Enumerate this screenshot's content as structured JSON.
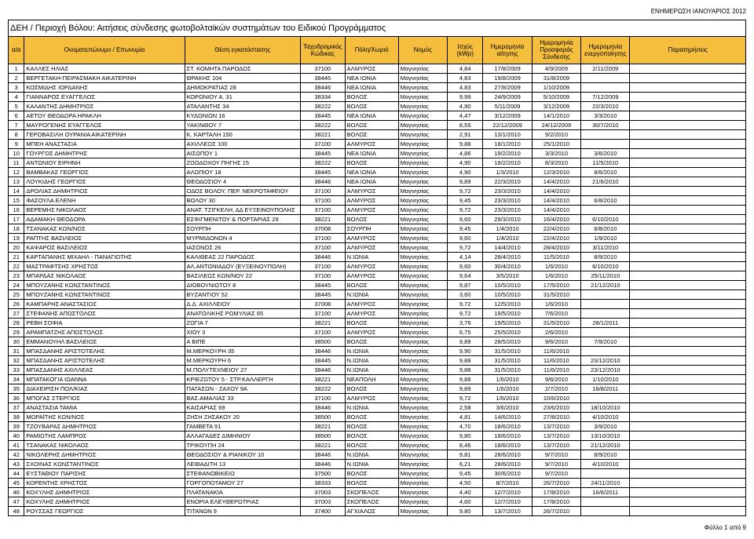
{
  "headerRight": "ΕΝΗΜΕΡΩΣΗ ΙΑΝΟΥΑΡΙΟΣ 2012",
  "title": "ΔΕΗ / Περιοχή Βόλου:  Αιτήσεις σύνδεσης φωτοβολταϊκών συστημάτων του Ειδικού Προγράμματος",
  "footer": "Φύλλο 1 από 9",
  "columns": [
    {
      "key": "aa",
      "label": "α/α",
      "cls": "c-aa"
    },
    {
      "key": "name",
      "label": "Ονοματεπώνυμο / Επωνυμία",
      "cls": "c-name"
    },
    {
      "key": "loc",
      "label": "Θέση εγκατάστασης",
      "cls": "c-loc"
    },
    {
      "key": "zip",
      "label": "Ταχυδρομικός Κώδικας",
      "cls": "c-zip"
    },
    {
      "key": "city",
      "label": "Πόλη/Χωριό",
      "cls": "c-city"
    },
    {
      "key": "nom",
      "label": "Νομός",
      "cls": "c-nom"
    },
    {
      "key": "pow",
      "label": "Ισχύς (kWp)",
      "cls": "c-pow"
    },
    {
      "key": "d1",
      "label": "Ημερομηνία αίτησης",
      "cls": "c-d1"
    },
    {
      "key": "d2",
      "label": "Ημερομηνία Προσφοράς Σύνδεσης",
      "cls": "c-d2"
    },
    {
      "key": "d3",
      "label": "Ημερομηνία ενεργοποίησης",
      "cls": "c-d3"
    },
    {
      "key": "note",
      "label": "Παρατηρήσεις",
      "cls": "c-note"
    }
  ],
  "rows": [
    [
      "1",
      "ΚΑΛΛΕΣ ΗΛΙΑΣ",
      "ΣΤ. ΚΟΜΗΤΑ ΠΑΡΟΔΟΣ",
      "37100",
      "ΑΛΜΥΡΟΣ",
      "Μαγνησίας",
      "4,84",
      "17/8/2009",
      "4/9/2009",
      "2/11/2009",
      ""
    ],
    [
      "2",
      "ΒΕΡΓΕΤΑΚΗ-ΠΕΙΡΑΣΜΑΚΗ ΑΙΚΑΤΕΡΙΝΗ",
      "ΘΡΑΚΗΣ 104",
      "38445",
      "ΝΕΑ ΙΩΝΙΑ",
      "Μαγνησίας",
      "4,83",
      "19/8/2009",
      "31/8/2009",
      "",
      ""
    ],
    [
      "3",
      "ΚΟΣΜΙΔΗΣ ΙΟΡΔΑΝΗΣ",
      "ΔΗΜΟΚΡΑΤΙΑΣ 28",
      "38446",
      "ΝΕΑ ΙΩΝΙΑ",
      "Μαγνησίας",
      "4,83",
      "27/8/2009",
      "1/10/2009",
      "",
      ""
    ],
    [
      "4",
      "ΓΙΑΝΝΑΡΟΣ ΕΥΑΓΓΕΛΟΣ",
      "ΚΟΡΩΝΙΟΥ Α. 31",
      "38334",
      "ΒΟΛΟΣ",
      "Μαγνησίας",
      "9,99",
      "24/9/2009",
      "5/10/2009",
      "7/12/2009",
      ""
    ],
    [
      "5",
      "ΚΑΛΑΝΤΗΣ ΔΗΜΗΤΡΙΟΣ",
      "ΑΤΑΛΑΝΤΗΣ 34",
      "38222",
      "ΒΟΛΟΣ",
      "Μαγνησίας",
      "4,90",
      "5/11/2009",
      "3/12/2009",
      "22/3/2010",
      ""
    ],
    [
      "6",
      "ΑΕΤΟΥ ΘΕΟΔΩΡΑ ΗΡΑΚΛΗ",
      "ΚΥΔΩΝΙΩΝ 16",
      "38445",
      "ΝΕΑ ΙΩΝΙΑ",
      "Μαγνησίας",
      "4,47",
      "3/12/2009",
      "14/1/2010",
      "3/3/2010",
      ""
    ],
    [
      "7",
      "ΜΑΥΡΟΓΕΝΗΣ ΕΥΑΓΓΕΛΟΣ",
      "ΥΑΚΙΝΘΟΥ 7",
      "38222",
      "ΒΟΛΟΣ",
      "Μαγνησίας",
      "8,55",
      "22/12/2009",
      "24/12/2009",
      "30/7/2010",
      ""
    ],
    [
      "8",
      "ΓΕΡΟΒΑΣΙΛΗ ΟΥΡΑΝΙΑ ΑΙΚΑΤΕΡΙΝΗ",
      "Κ. ΚΑΡΤΑΛΗ 150",
      "38221",
      "ΒΟΛΟΣ",
      "Μαγνησίας",
      "2,91",
      "13/1/2010",
      "9/2/2010",
      "",
      ""
    ],
    [
      "9",
      "ΜΠΕΗ ΑΝΑΣΤΑΣΙΑ",
      "ΑΧΙΛΛΕΩΣ 100",
      "37100",
      "ΑΛΜΥΡΟΣ",
      "Μαγνησίας",
      "9,88",
      "18/1/2010",
      "25/1/2010",
      "",
      ""
    ],
    [
      "10",
      "ΓΟΥΡΓΟΣ ΔΗΜΗΤΡΗΣ",
      "ΑΙΣΩΠΟΥ 1",
      "38445",
      "ΝΕΑ ΙΩΝΙΑ",
      "Μαγνησίας",
      "4,86",
      "19/2/2010",
      "3/3/2010",
      "3/6/2010",
      ""
    ],
    [
      "11",
      "ΑΝΤΩΝΙΟΥ ΕΙΡΗΝΗ",
      "ΖΩΟΔΟΧΟΥ ΠΗΓΗΣ 15",
      "38222",
      "ΒΟΛΟΣ",
      "Μαγνησίας",
      "4,90",
      "19/2/2010",
      "8/3/2010",
      "11/5/2010",
      ""
    ],
    [
      "12",
      "ΒΑΜΒΑΚΑΣ ΓΕΩΡΓΙΟΣ",
      "ΑΛΩΠΙΟΥ 18",
      "38445",
      "ΝΕΑ ΙΩΝΙΑ",
      "Μαγνησίας",
      "4,90",
      "1/3/2010",
      "12/3/2010",
      "8/6/2010",
      ""
    ],
    [
      "13",
      "ΛΟΥΚΙΔΗΣ ΓΕΩΡΓΙΟΣ",
      "ΘΕΟΔΟΣΙΟΥ 4",
      "38446",
      "ΝΕΑ ΙΩΝΙΑ",
      "Μαγνησίας",
      "9,89",
      "22/3/2010",
      "14/4/2010",
      "21/6/2010",
      ""
    ],
    [
      "14",
      "ΔΡΟΛΙΑΣ ΔΗΜΗΤΡΙΟΣ",
      "ΟΔΟΣ ΒΟΛΟΥ, ΠΕΡ. ΝΕΚΡΟΤΑΦΕΙΟΥ",
      "37100",
      "ΑΛΜΥΡΟΣ",
      "Μαγνησίας",
      "9,72",
      "23/3/2010",
      "14/4/2010",
      "",
      ""
    ],
    [
      "15",
      "ΦΑΣΟΥΛΑ ΕΛΕΝΗ",
      "ΒΟΛΟΥ 30",
      "37100",
      "ΑΛΜΥΡΟΣ",
      "Μαγνησίας",
      "9,45",
      "23/3/2010",
      "14/4/2010",
      "6/8/2010",
      ""
    ],
    [
      "16",
      "ΒΕΡΕΜΗΣ ΝΙΚΟΛΑΟΣ",
      "ΑΝΑΤ. ΤΖΙΓΚΕΛΗ, ΔΔ ΕΥΞΕΙΝΟΥΠΟΛΗΣ",
      "37100",
      "ΑΛΜΥΡΟΣ",
      "Μαγνησίας",
      "9,72",
      "23/3/2010",
      "14/4/2010",
      "",
      ""
    ],
    [
      "17",
      "ΑΔΑΜΑΚΗ ΘΕΟΔΩΡΑ",
      "ΕΣΦΙΓΜΕΝΙΤΟΥ & ΠΟΡΤΑΡΙΑΣ 29",
      "38221",
      "ΒΟΛΟΣ",
      "Μαγνησίας",
      "9,60",
      "29/3/2010",
      "16/4/2010",
      "6/10/2010",
      ""
    ],
    [
      "18",
      "ΤΣΑΝΑΚΑΣ ΚΩΝ/ΝΟΣ",
      "ΣΟΥΡΠΗ",
      "37008",
      "ΣΟΥΡΠΗ",
      "Μαγνησίας",
      "9,45",
      "1/4/2010",
      "22/4/2010",
      "6/8/2010",
      ""
    ],
    [
      "19",
      "ΡΑΠΤΗΣ ΒΑΣΙΛΕΙΟΣ",
      "ΜΥΡΜΙΔΟΝΩΝ 4",
      "37100",
      "ΑΛΜΥΡΟΣ",
      "Μαγνησίας",
      "9,60",
      "1/4/2010",
      "22/4/2010",
      "1/9/2010",
      ""
    ],
    [
      "20",
      "ΚΑΨΑΡΟΣ ΒΑΣΙΛΕΙΟΣ",
      "ΙΑΣΟΝΟΣ 26",
      "37100",
      "ΑΛΜΥΡΟΣ",
      "Μαγνησίας",
      "9,72",
      "14/4/2010",
      "28/4/2010",
      "3/11/2010",
      ""
    ],
    [
      "21",
      "ΚΑΡΤΑΠΑΝΗΣ ΜΙΧΑΗΛ - ΠΑΝΑΓΙΩΤΗΣ",
      "ΚΑΛΙΘΕΑΣ 22 ΠΑΡΟΔΟΣ",
      "38446",
      "Ν.ΙΩΝΙΑ",
      "Μαγνησίας",
      "4,14",
      "28/4/2010",
      "11/5/2010",
      "8/9/2010",
      ""
    ],
    [
      "22",
      "ΜΑΣΤΡΑΦΤΣΗΣ ΧΡΗΣΤΟΣ",
      "ΑΛ.ΑΝΤΩΝΙΑΔΟΥ (ΕΥΞΕΙΝΟΥΠΟΛΗ)",
      "37100",
      "ΑΛΜΥΡΟΣ",
      "Μαγνησίας",
      "9,60",
      "30/4/2010",
      "1/6/2010",
      "6/10/2010",
      ""
    ],
    [
      "23",
      "ΜΠΑΡΔΑΣ ΝΙΚΟΛΑΟΣ",
      "ΒΑΣΙΛΕΩΣ ΚΩΝ/ΝΟΥ 22",
      "37100",
      "ΑΛΜΥΡΟΣ",
      "Μαγνησίας",
      "9,64",
      "3/5/2010",
      "1/6/2010",
      "25/11/2010",
      ""
    ],
    [
      "24",
      "ΜΠΟΥΖΑΝΗΣ ΚΩΝΣΤΑΝΤΙΝΟΣ",
      "ΔΙΟΒΟΥΝΙΩΤΟΥ 8",
      "38445",
      "ΒΟΛΟΣ",
      "Μαγνησίας",
      "9,87",
      "10/5/2010",
      "17/5/2010",
      "21/12/2010",
      ""
    ],
    [
      "25",
      "ΜΠΟΥΖΑΝΗΣ ΚΩΝΣΤΑΝΤΙΝΟΣ",
      "ΒΥΖΑΝΤΙΟΥ 52",
      "38445",
      "Ν.ΙΩΝΙΑ",
      "Μαγνησίας",
      "3,60",
      "10/5/2010",
      "31/5/2010",
      "",
      ""
    ],
    [
      "26",
      "ΚΑΜΠΑΡΗΣ ΑΝΑΣΤΑΣΙΟΣ",
      "Δ.Δ. ΑΧΙΛΛΕΙΟΥ",
      "37008",
      "ΑΛΜΥΡΟΣ",
      "Μαγνησίας",
      "9,72",
      "12/5/2010",
      "1/6/2010",
      "",
      ""
    ],
    [
      "27",
      "ΣΤΕΦΑΝΗΣ ΑΠΟΣΤΟΛΟΣ",
      "ΑΝΑΤΟΛΙΚΗΣ ΡΩΜΥΛΙΑΣ 65",
      "37100",
      "ΑΛΜΥΡΟΣ",
      "Μαγνησίας",
      "9,72",
      "19/5/2010",
      "7/6/2010",
      "",
      ""
    ],
    [
      "28",
      "ΡΕΒΗ ΣΟΦΙΑ",
      "ΖΩΓΙΑ 7",
      "38221",
      "ΒΟΛΟΣ",
      "Μαγνησίας",
      "3,76",
      "19/5/2010",
      "31/5/2010",
      "28/1/2011",
      ""
    ],
    [
      "29",
      "ΑΡΑΜΠΑΤΖΗΣ ΑΠΟΣΤΟΛΟΣ",
      "ΧΙΟΥ 3",
      "37100",
      "ΑΛΜΥΡΟΣ",
      "Μαγνησίας",
      "6,75",
      "25/5/2010",
      "2/6/2010",
      "",
      ""
    ],
    [
      "30",
      "ΕΜΜΑΝΟΥΗΛ ΒΑΣΙΛΕΙΟΣ",
      "Α ΒΙΠΕ",
      "38500",
      "ΒΟΛΟΣ",
      "Μαγνησίας",
      "9,89",
      "28/5/2010",
      "9/6/2010",
      "7/9/2010",
      ""
    ],
    [
      "31",
      "ΜΠΑΣΔΑΝΗΣ ΑΡΙΣΤΟΤΕΛΗΣ",
      "Μ.ΜΕΡΚΟΥΡΗ 35",
      "38446",
      "Ν.ΙΩΝΙΑ",
      "Μαγνησίας",
      "9,90",
      "31/5/2010",
      "11/6/2010",
      "",
      ""
    ],
    [
      "32",
      "ΜΠΑΣΔΑΝΗΣ ΑΡΙΣΤΟΤΕΛΗΣ",
      "Μ.ΜΕΡΚΟΥΡΗ 6",
      "38445",
      "Ν.ΙΩΝΙΑ",
      "Μαγνησίας",
      "9,88",
      "31/5/2010",
      "11/6/2010",
      "23/12/2010",
      ""
    ],
    [
      "33",
      "ΜΠΑΣΔΑΝΗΣ ΑΧΙΛΛΕΑΣ",
      "Μ.ΠΟΛΥΤΕΧΝΕΙΟΥ 27",
      "38446",
      "Ν.ΙΩΝΙΑ",
      "Μαγνησίας",
      "9,88",
      "31/5/2010",
      "11/6/2010",
      "23/12/2010",
      ""
    ],
    [
      "34",
      "ΜΠΑΤΑΚΟΓΙΑ ΙΩΑΝΝΑ",
      "ΚΡΙΕΖΩΤΟΥ 5 - ΣΤΡ.ΚΑΛΛΕΡΓΗ",
      "38221",
      "ΝΕΑΠΟΛΗ",
      "Μαγνησίας",
      "9,88",
      "1/6/2010",
      "9/6/2010",
      "1/10/2010",
      ""
    ],
    [
      "35",
      "ΔΙΑΧΕΙΡΙΣΗ ΠΟΛ/ΚΙΑΣ",
      "ΠΑΓΑΣΩΝ - ΖΑΧΟΥ 9Α",
      "38222",
      "ΒΟΛΟΣ",
      "Μαγνησίας",
      "9,89",
      "1/6/2010",
      "2/7/2010",
      "18/8/2011",
      ""
    ],
    [
      "36",
      "ΜΠΟΓΑΣ ΣΤΕΡΓΙΟΣ",
      "ΒΑΣ.ΑΜΑΛΙΑΣ 33",
      "37100",
      "ΑΛΜΥΡΟΣ",
      "Μαγνησίας",
      "9,72",
      "1/6/2010",
      "10/6/2010",
      "",
      ""
    ],
    [
      "37",
      "ΑΝΑΣΤΑΣΙΑ ΤΑΜΙΑ",
      "ΚΑΙΣΑΡΙΑΣ 69",
      "38446",
      "Ν.ΙΩΝΙΑ",
      "Μαγνησίας",
      "2,58",
      "3/6/2010",
      "23/6/2010",
      "18/10/2010",
      ""
    ],
    [
      "38",
      "ΜΩΡΑΪΤΗΣ ΚΩΝ/ΝΟΣ",
      "ΖΗΣΗ ΖΗΣΑΚΟΥ 20",
      "38500",
      "ΒΟΛΟΣ",
      "Μαγνησίας",
      "4,81",
      "14/6/2010",
      "27/8/2010",
      "4/10/2010",
      ""
    ],
    [
      "39",
      "ΤΖΟΥΒΑΡΑΣ ΔΗΜΗΤΡΙΟΣ",
      "ΓΑΜΒΕΤΑ 91",
      "38221",
      "ΒΟΛΟΣ",
      "Μαγνησίας",
      "4,70",
      "18/6/2010",
      "13/7/2010",
      "3/9/2010",
      ""
    ],
    [
      "40",
      "ΡΑΜΙΩΤΗΣ ΛΑΜΠΡΟΣ",
      "ΑΛΛΑΓΑΔΕΣ ΔΙΜΗΝΙΟΥ",
      "38500",
      "ΒΟΛΟΣ",
      "Μαγνησίας",
      "9,80",
      "18/6/2010",
      "13/7/2010",
      "13/10/2010",
      ""
    ],
    [
      "41",
      "ΤΣΑΝΑΚΑΣ ΝΙΚΟΛΑΟΣ",
      "ΤΡΙΚΟΥΠΗ 24",
      "38221",
      "ΒΟΛΟΣ",
      "Μαγνησίας",
      "8,46",
      "18/6/2010",
      "13/7/2010",
      "21/12/2010",
      ""
    ],
    [
      "42",
      "ΝΙΚΟΛΕΡΗΣ ΔΗΜΗΤΡΙΟΣ",
      "ΘΕΟΔΟΣΙΟΥ & ΡΙΑΝΙΚΟΥ 10",
      "38446",
      "Ν.ΙΩΝΙΑ",
      "Μαγνησίας",
      "9,81",
      "28/6/2010",
      "9/7/2010",
      "8/9/2010",
      ""
    ],
    [
      "43",
      "ΣΧΟΙΝΑΣ ΚΩΝΣΤΑΝΤΙΝΟΣ",
      "ΛΕΙΒΑΔΙΤΗ 13",
      "38446",
      "Ν.ΙΩΝΙΑ",
      "Μαγνησίας",
      "6,21",
      "28/6/2010",
      "9/7/2010",
      "4/10/2010",
      ""
    ],
    [
      "44",
      "ΕΥΣΤΑΘΙΟΥ ΠΑΡΙΣΗΣ",
      "ΣΤΕΦΑΝΟΒΙΚΕΙΟ",
      "37500",
      "ΒΟΛΟΣ",
      "Μαγνησίας",
      "9,45",
      "30/6/2010",
      "9/7/2010",
      "",
      ""
    ],
    [
      "45",
      "ΚΟΡΕΝΤΗΣ ΧΡΗΣΤΟΣ",
      "ΓΟΡΓΟΠΟΤΑΜΟΥ 27",
      "38333",
      "ΒΟΛΟΣ",
      "Μαγνησίας",
      "4,50",
      "8/7/2010",
      "26/7/2010",
      "24/11/2010",
      ""
    ],
    [
      "46",
      "ΚΟΧΥΛΗΣ ΔΗΜΗΤΡΙΟΣ",
      "ΠΛΑΤΑΝΑΚΙΑ",
      "37003",
      "ΣΚΟΠΕΛΟΣ",
      "Μαγνησίας",
      "4,40",
      "12/7/2010",
      "17/8/2010",
      "16/6/2011",
      ""
    ],
    [
      "47",
      "ΚΟΧΥΛΗΣ ΔΗΜΗΤΡΙΟΣ",
      "ΕΝΟΡΙΑ ΕΛΕΥΘΕΡΩΤΡΙΑΣ",
      "37003",
      "ΣΚΟΠΕΛΟΣ",
      "Μαγνησίας",
      "4,60",
      "12/7/2010",
      "17/8/2010",
      "",
      ""
    ],
    [
      "48",
      "ΡΟΥΣΣΑΣ ΓΕΩΡΓΙΟΣ",
      "ΤΙΤΑΝΩΝ 9",
      "37400",
      "ΑΓΧΙΑΛΟΣ",
      "Μαγνησίας",
      "9,80",
      "13/7/2010",
      "26/7/2010",
      "",
      ""
    ]
  ]
}
